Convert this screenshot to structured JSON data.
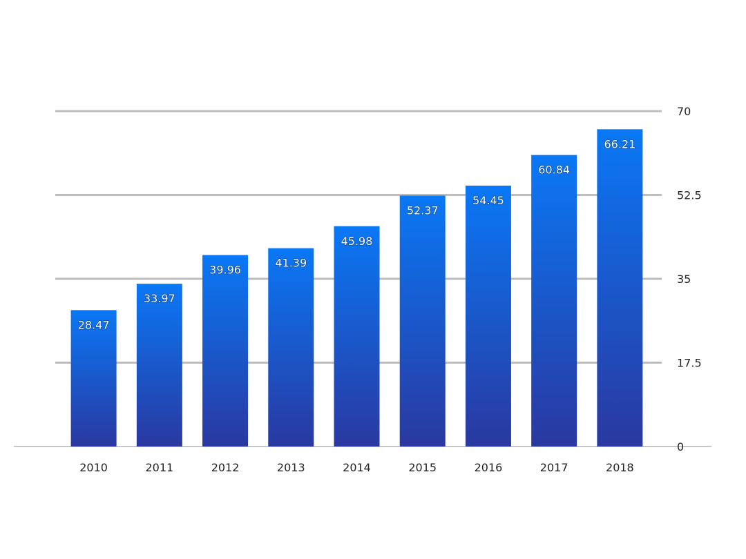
{
  "chart_data": {
    "type": "bar",
    "categories": [
      "2010",
      "2011",
      "2012",
      "2013",
      "2014",
      "2015",
      "2016",
      "2017",
      "2018"
    ],
    "values": [
      28.47,
      33.97,
      39.96,
      41.39,
      45.98,
      52.37,
      54.45,
      60.84,
      66.21
    ],
    "data_labels": [
      "28.47",
      "33.97",
      "39.96",
      "41.39",
      "45.98",
      "52.37",
      "54.45",
      "60.84",
      "66.21"
    ],
    "ylim": [
      0,
      70
    ],
    "yticks": [
      0,
      17.5,
      35,
      52.5,
      70
    ],
    "ytick_labels": [
      "0",
      "17.5",
      "35",
      "52.5",
      "70"
    ],
    "y_axis_side": "right",
    "grid": true,
    "legend": "none",
    "title": "",
    "xlabel": "",
    "ylabel": ""
  },
  "colors": {
    "bar_top": "#0a78f5",
    "bar_bottom": "#2a38a0",
    "grid": "#bdbdbd",
    "baseline": "#c8c8c8",
    "text": "#222222",
    "data_label": "#ffffff"
  }
}
